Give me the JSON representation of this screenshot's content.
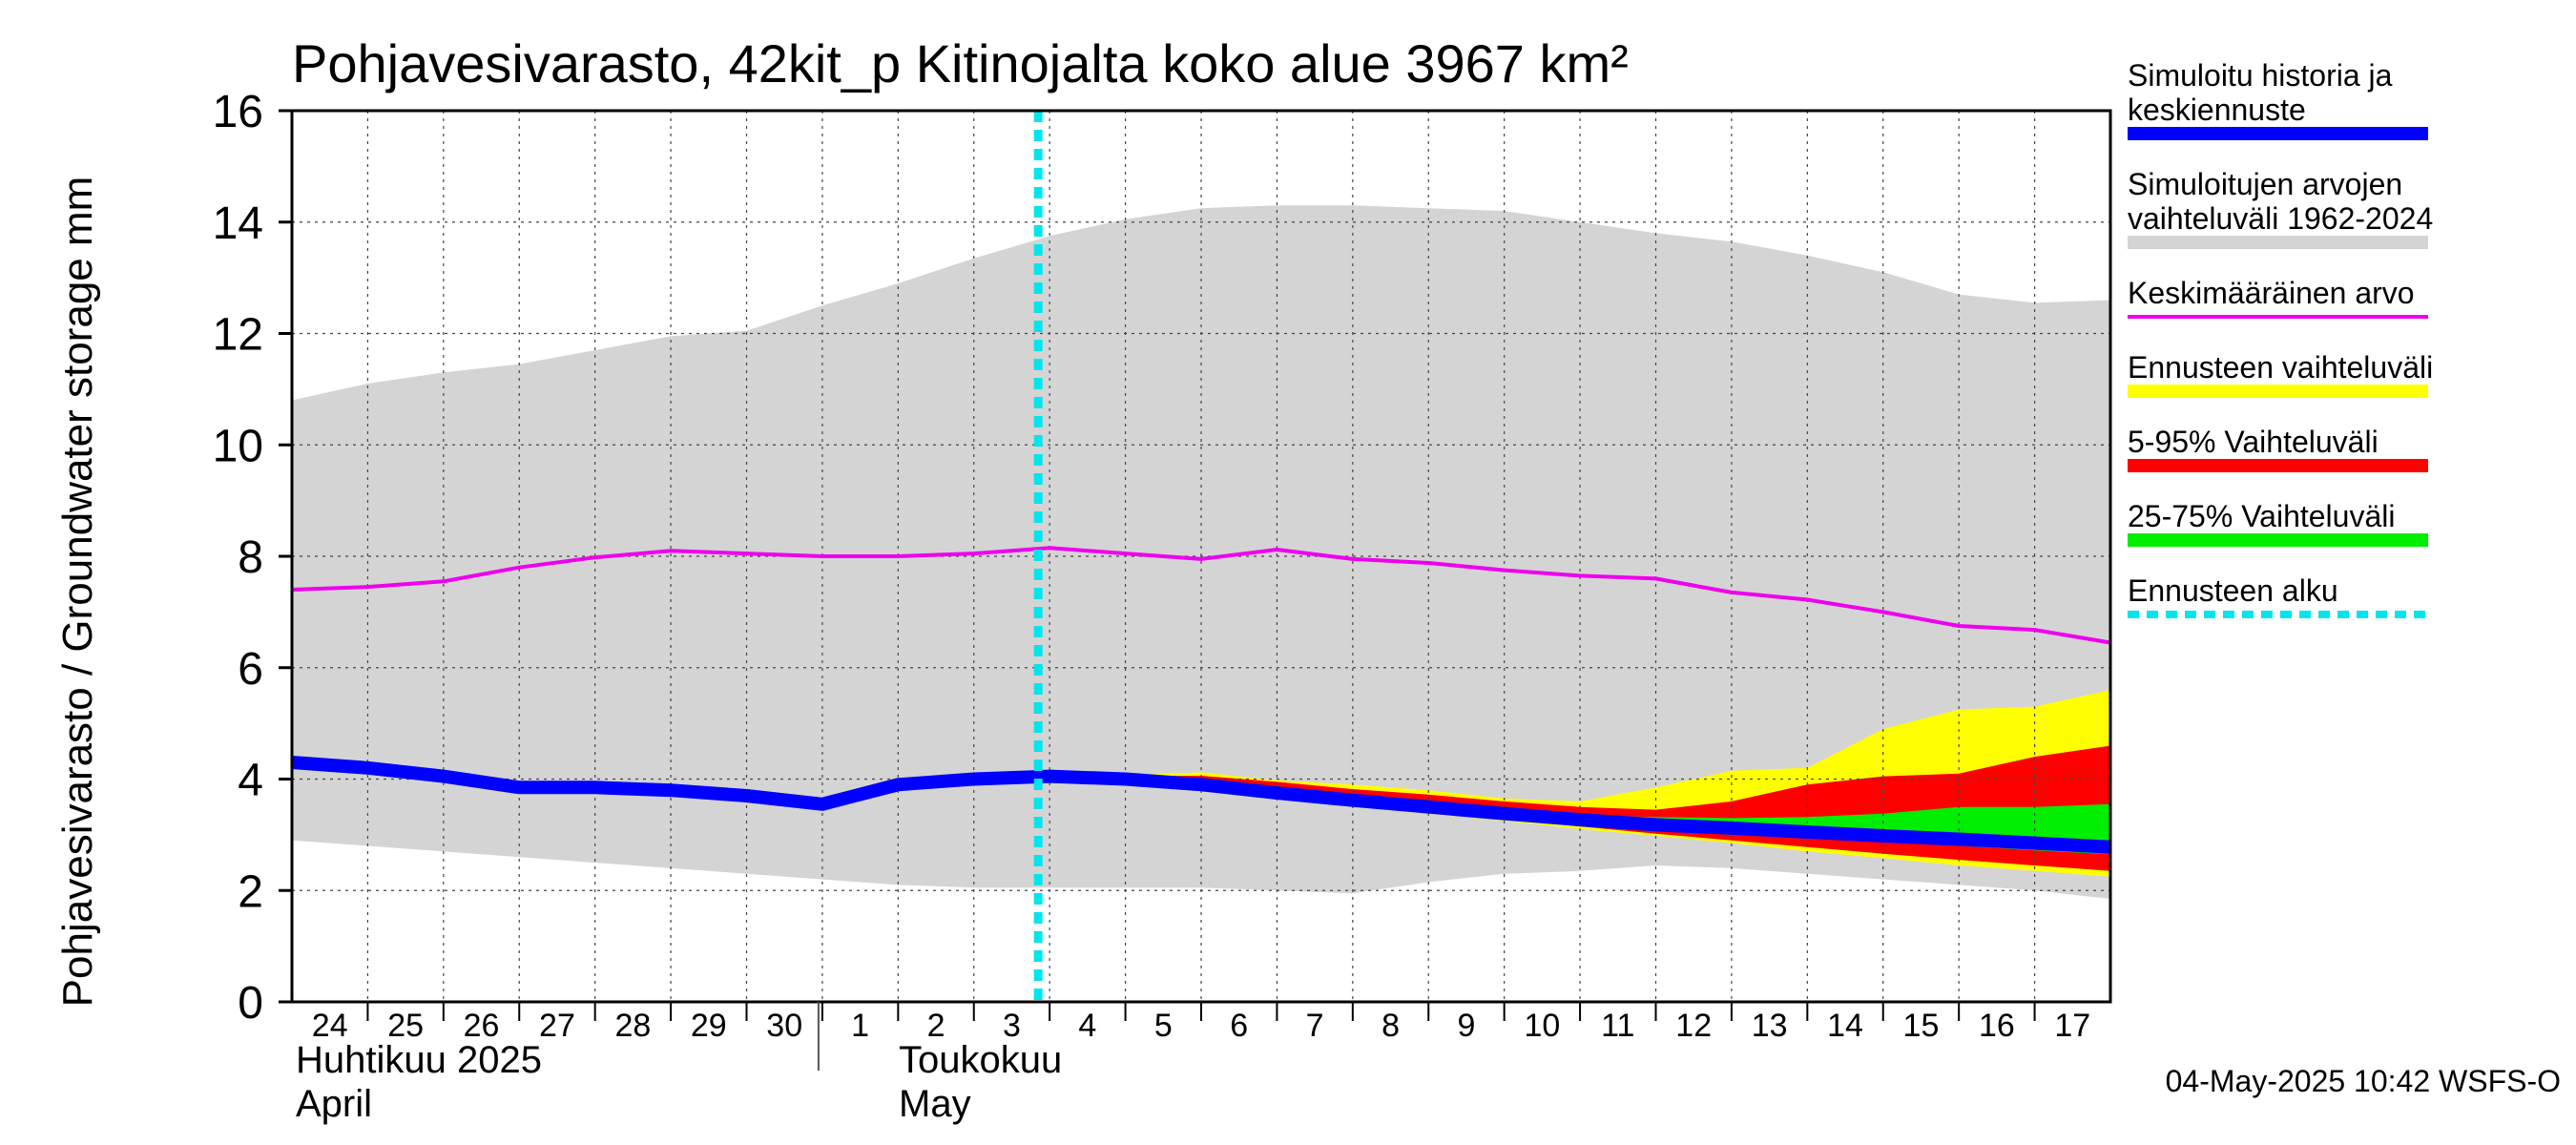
{
  "chart_data": {
    "type": "area",
    "title": "Pohjavesivarasto, 42kit_p Kitinojalta koko alue 3967 km²",
    "ylabel": "Pohjavesivarasto / Groundwater storage   mm",
    "ylim": [
      0,
      16
    ],
    "yticks": [
      "0",
      "2",
      "4",
      "6",
      "8",
      "10",
      "12",
      "14",
      "16"
    ],
    "grid": true,
    "x_day_labels": [
      "24",
      "25",
      "26",
      "27",
      "28",
      "29",
      "30",
      "1",
      "2",
      "3",
      "4",
      "5",
      "6",
      "7",
      "8",
      "9",
      "10",
      "11",
      "12",
      "13",
      "14",
      "15",
      "16",
      "17"
    ],
    "months": [
      {
        "fi": "Huhtikuu  2025",
        "en": "April"
      },
      {
        "fi": "Toukokuu",
        "en": "May"
      }
    ],
    "forecast_start_day_index": 10,
    "series": [
      {
        "name": "Simuloitujen arvojen vaihteluväli 1962-2024",
        "kind": "band",
        "color": "#d4d4d4",
        "upper": [
          10.8,
          11.1,
          11.3,
          11.45,
          11.7,
          11.95,
          12.05,
          12.5,
          12.9,
          13.35,
          13.75,
          14.05,
          14.25,
          14.3,
          14.3,
          14.25,
          14.2,
          14.0,
          13.8,
          13.65,
          13.4,
          13.1,
          12.7,
          12.55,
          12.6
        ],
        "lower": [
          2.9,
          2.8,
          2.7,
          2.6,
          2.5,
          2.4,
          2.3,
          2.2,
          2.1,
          2.05,
          2.05,
          2.05,
          2.05,
          2.0,
          1.95,
          2.15,
          2.3,
          2.35,
          2.45,
          2.4,
          2.3,
          2.2,
          2.1,
          2.0,
          1.85
        ]
      },
      {
        "name": "Keskimääräinen arvo",
        "kind": "line",
        "color": "#ee00ee",
        "values": [
          7.4,
          7.45,
          7.55,
          7.8,
          7.98,
          8.1,
          8.05,
          8.0,
          8.0,
          8.05,
          8.15,
          8.05,
          7.95,
          8.12,
          7.95,
          7.88,
          7.75,
          7.65,
          7.6,
          7.35,
          7.22,
          7.0,
          6.75,
          6.68,
          6.45
        ]
      },
      {
        "name": "Ennusteen vaihteluväli",
        "kind": "band",
        "color": "#ffff00",
        "start_index": 10,
        "upper": [
          4.05,
          4.08,
          4.12,
          3.98,
          3.9,
          3.8,
          3.65,
          3.6,
          3.85,
          4.15,
          4.2,
          4.9,
          5.25,
          5.3,
          5.6
        ],
        "lower": [
          4.05,
          3.95,
          3.85,
          3.68,
          3.52,
          3.38,
          3.25,
          3.1,
          2.98,
          2.85,
          2.7,
          2.58,
          2.45,
          2.35,
          2.25
        ]
      },
      {
        "name": "5-95% Vaihteluväli",
        "kind": "band",
        "color": "#ff0000",
        "start_index": 10,
        "upper": [
          4.05,
          4.05,
          4.06,
          3.95,
          3.82,
          3.72,
          3.6,
          3.5,
          3.45,
          3.6,
          3.9,
          4.05,
          4.1,
          4.4,
          4.6
        ],
        "lower": [
          4.05,
          3.97,
          3.87,
          3.7,
          3.55,
          3.42,
          3.28,
          3.15,
          3.02,
          2.9,
          2.78,
          2.66,
          2.55,
          2.45,
          2.35
        ]
      },
      {
        "name": "25-75% Vaihteluväli",
        "kind": "band",
        "color": "#00ee00",
        "start_index": 10,
        "upper": [
          4.05,
          4.01,
          3.96,
          3.83,
          3.7,
          3.58,
          3.45,
          3.35,
          3.32,
          3.3,
          3.32,
          3.38,
          3.5,
          3.5,
          3.55
        ],
        "lower": [
          4.05,
          3.99,
          3.9,
          3.74,
          3.59,
          3.47,
          3.33,
          3.22,
          3.12,
          3.03,
          2.95,
          2.88,
          2.8,
          2.72,
          2.65
        ]
      },
      {
        "name": "Simuloitu historia ja keskiennuste",
        "kind": "line",
        "color": "#0000ff",
        "values": [
          4.3,
          4.2,
          4.05,
          3.85,
          3.85,
          3.8,
          3.7,
          3.55,
          3.9,
          4.0,
          4.05,
          4.0,
          3.9,
          3.75,
          3.62,
          3.5,
          3.38,
          3.27,
          3.18,
          3.12,
          3.05,
          2.98,
          2.92,
          2.85,
          2.78
        ]
      }
    ],
    "legend": [
      {
        "label": "Simuloitu historia ja keskiennuste",
        "color": "#0000ff",
        "style": "thick"
      },
      {
        "label": "Simuloitujen arvojen vaihteluväli 1962-2024",
        "color": "#d4d4d4",
        "style": "thick"
      },
      {
        "label": "Keskimääräinen arvo",
        "color": "#ee00ee",
        "style": "thin"
      },
      {
        "label": "Ennusteen vaihteluväli",
        "color": "#ffff00",
        "style": "thick"
      },
      {
        "label": "5-95% Vaihteluväli",
        "color": "#ff0000",
        "style": "thick"
      },
      {
        "label": "25-75% Vaihteluväli",
        "color": "#00ee00",
        "style": "thick"
      },
      {
        "label": "Ennusteen alku",
        "color": "#00e5ee",
        "style": "dashed"
      }
    ],
    "legend_position": "right",
    "footer": "04-May-2025 10:42 WSFS-O"
  }
}
